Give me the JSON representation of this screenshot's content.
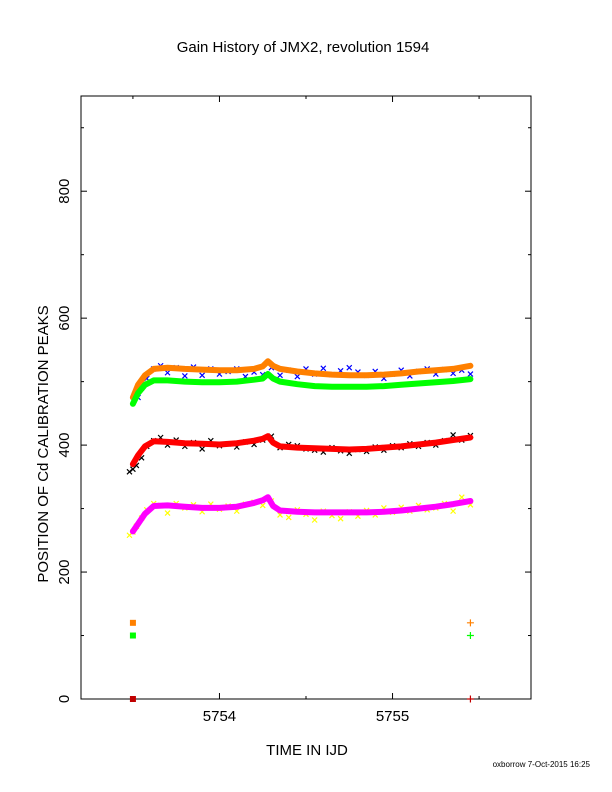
{
  "chart_data": {
    "type": "scatter",
    "title": "Gain History of JMX2, revolution 1594",
    "xlabel": "TIME IN IJD",
    "ylabel": "POSITION OF Cd CALIBRATION PEAKS",
    "xlim": [
      5753.2,
      5755.8
    ],
    "ylim": [
      0,
      950
    ],
    "x_ticks": [
      5754,
      5755
    ],
    "y_ticks": [
      0,
      200,
      400,
      600,
      800
    ],
    "grid": false,
    "series": [
      {
        "color": "#0000ff",
        "marker": "x",
        "points": [
          [
            5753.53,
            475
          ],
          [
            5753.55,
            490
          ],
          [
            5753.58,
            505
          ],
          [
            5753.62,
            520
          ],
          [
            5753.66,
            525
          ],
          [
            5753.7,
            514
          ],
          [
            5753.75,
            522
          ],
          [
            5753.8,
            509
          ],
          [
            5753.85,
            523
          ],
          [
            5753.9,
            510
          ],
          [
            5753.95,
            520
          ],
          [
            5754.0,
            512
          ],
          [
            5754.05,
            516
          ],
          [
            5754.1,
            520
          ],
          [
            5754.15,
            508
          ],
          [
            5754.2,
            515
          ],
          [
            5754.25,
            511
          ],
          [
            5754.3,
            522
          ],
          [
            5754.35,
            510
          ],
          [
            5754.4,
            518
          ],
          [
            5754.45,
            508
          ],
          [
            5754.5,
            520
          ],
          [
            5754.55,
            512
          ],
          [
            5754.6,
            521
          ],
          [
            5754.65,
            511
          ],
          [
            5754.7,
            517
          ],
          [
            5754.75,
            522
          ],
          [
            5754.8,
            515
          ],
          [
            5754.85,
            510
          ],
          [
            5754.9,
            516
          ],
          [
            5754.95,
            505
          ],
          [
            5755.0,
            512
          ],
          [
            5755.05,
            518
          ],
          [
            5755.1,
            509
          ],
          [
            5755.15,
            516
          ],
          [
            5755.2,
            520
          ],
          [
            5755.25,
            512
          ],
          [
            5755.3,
            519
          ],
          [
            5755.35,
            513
          ],
          [
            5755.4,
            518
          ],
          [
            5755.45,
            512
          ]
        ]
      },
      {
        "color": "#000000",
        "marker": "x",
        "points": [
          [
            5753.48,
            358
          ],
          [
            5753.5,
            362
          ],
          [
            5753.52,
            368
          ],
          [
            5753.55,
            380
          ],
          [
            5753.58,
            398
          ],
          [
            5753.62,
            407
          ],
          [
            5753.66,
            412
          ],
          [
            5753.7,
            400
          ],
          [
            5753.75,
            408
          ],
          [
            5753.8,
            398
          ],
          [
            5753.85,
            404
          ],
          [
            5753.9,
            394
          ],
          [
            5753.95,
            407
          ],
          [
            5754.0,
            399
          ],
          [
            5754.05,
            402
          ],
          [
            5754.1,
            397
          ],
          [
            5754.15,
            405
          ],
          [
            5754.2,
            401
          ],
          [
            5754.25,
            408
          ],
          [
            5754.3,
            414
          ],
          [
            5754.35,
            396
          ],
          [
            5754.4,
            401
          ],
          [
            5754.45,
            399
          ],
          [
            5754.5,
            394
          ],
          [
            5754.55,
            392
          ],
          [
            5754.6,
            389
          ],
          [
            5754.65,
            396
          ],
          [
            5754.7,
            391
          ],
          [
            5754.75,
            387
          ],
          [
            5754.8,
            393
          ],
          [
            5754.85,
            390
          ],
          [
            5754.9,
            397
          ],
          [
            5754.95,
            392
          ],
          [
            5755.0,
            399
          ],
          [
            5755.05,
            396
          ],
          [
            5755.1,
            402
          ],
          [
            5755.15,
            398
          ],
          [
            5755.2,
            404
          ],
          [
            5755.25,
            400
          ],
          [
            5755.3,
            407
          ],
          [
            5755.35,
            416
          ],
          [
            5755.4,
            408
          ],
          [
            5755.45,
            415
          ]
        ]
      },
      {
        "color": "#ffff00",
        "marker": "x",
        "points": [
          [
            5753.48,
            258
          ],
          [
            5753.5,
            263
          ],
          [
            5753.52,
            272
          ],
          [
            5753.55,
            285
          ],
          [
            5753.58,
            298
          ],
          [
            5753.62,
            308
          ],
          [
            5753.66,
            305
          ],
          [
            5753.7,
            293
          ],
          [
            5753.75,
            308
          ],
          [
            5753.8,
            301
          ],
          [
            5753.85,
            306
          ],
          [
            5753.9,
            295
          ],
          [
            5753.95,
            307
          ],
          [
            5754.0,
            299
          ],
          [
            5754.05,
            304
          ],
          [
            5754.1,
            296
          ],
          [
            5754.15,
            307
          ],
          [
            5754.2,
            310
          ],
          [
            5754.25,
            305
          ],
          [
            5754.3,
            312
          ],
          [
            5754.35,
            290
          ],
          [
            5754.4,
            286
          ],
          [
            5754.45,
            298
          ],
          [
            5754.5,
            291
          ],
          [
            5754.55,
            282
          ],
          [
            5754.6,
            296
          ],
          [
            5754.65,
            289
          ],
          [
            5754.7,
            284
          ],
          [
            5754.75,
            295
          ],
          [
            5754.8,
            288
          ],
          [
            5754.85,
            297
          ],
          [
            5754.9,
            290
          ],
          [
            5754.95,
            301
          ],
          [
            5755.0,
            294
          ],
          [
            5755.05,
            302
          ],
          [
            5755.1,
            296
          ],
          [
            5755.15,
            305
          ],
          [
            5755.2,
            298
          ],
          [
            5755.25,
            301
          ],
          [
            5755.3,
            308
          ],
          [
            5755.35,
            296
          ],
          [
            5755.4,
            318
          ],
          [
            5755.45,
            306
          ]
        ]
      },
      {
        "color": "#ff8000",
        "marker": "line",
        "points": [
          [
            5753.5,
            475
          ],
          [
            5753.53,
            495
          ],
          [
            5753.57,
            510
          ],
          [
            5753.62,
            520
          ],
          [
            5753.7,
            522
          ],
          [
            5753.8,
            520
          ],
          [
            5753.9,
            519
          ],
          [
            5754.0,
            518
          ],
          [
            5754.1,
            518
          ],
          [
            5754.2,
            520
          ],
          [
            5754.25,
            524
          ],
          [
            5754.28,
            532
          ],
          [
            5754.31,
            525
          ],
          [
            5754.35,
            520
          ],
          [
            5754.45,
            516
          ],
          [
            5754.55,
            513
          ],
          [
            5754.65,
            511
          ],
          [
            5754.75,
            510
          ],
          [
            5754.85,
            510
          ],
          [
            5754.95,
            511
          ],
          [
            5755.05,
            513
          ],
          [
            5755.15,
            516
          ],
          [
            5755.25,
            518
          ],
          [
            5755.35,
            520
          ],
          [
            5755.45,
            525
          ]
        ]
      },
      {
        "color": "#00ff00",
        "marker": "line",
        "points": [
          [
            5753.5,
            465
          ],
          [
            5753.53,
            482
          ],
          [
            5753.57,
            495
          ],
          [
            5753.62,
            502
          ],
          [
            5753.7,
            502
          ],
          [
            5753.8,
            500
          ],
          [
            5753.9,
            499
          ],
          [
            5754.0,
            499
          ],
          [
            5754.1,
            500
          ],
          [
            5754.2,
            503
          ],
          [
            5754.25,
            505
          ],
          [
            5754.28,
            512
          ],
          [
            5754.31,
            505
          ],
          [
            5754.35,
            500
          ],
          [
            5754.45,
            496
          ],
          [
            5754.55,
            493
          ],
          [
            5754.65,
            492
          ],
          [
            5754.75,
            492
          ],
          [
            5754.85,
            492
          ],
          [
            5754.95,
            493
          ],
          [
            5755.05,
            495
          ],
          [
            5755.15,
            497
          ],
          [
            5755.25,
            499
          ],
          [
            5755.35,
            501
          ],
          [
            5755.45,
            504
          ]
        ]
      },
      {
        "color": "#ff0000",
        "marker": "line",
        "points": [
          [
            5753.5,
            370
          ],
          [
            5753.53,
            384
          ],
          [
            5753.57,
            398
          ],
          [
            5753.62,
            406
          ],
          [
            5753.7,
            405
          ],
          [
            5753.8,
            403
          ],
          [
            5753.9,
            402
          ],
          [
            5754.0,
            401
          ],
          [
            5754.1,
            403
          ],
          [
            5754.2,
            407
          ],
          [
            5754.25,
            410
          ],
          [
            5754.28,
            414
          ],
          [
            5754.31,
            404
          ],
          [
            5754.35,
            398
          ],
          [
            5754.45,
            396
          ],
          [
            5754.55,
            395
          ],
          [
            5754.65,
            394
          ],
          [
            5754.75,
            393
          ],
          [
            5754.85,
            394
          ],
          [
            5754.95,
            396
          ],
          [
            5755.05,
            398
          ],
          [
            5755.15,
            401
          ],
          [
            5755.25,
            404
          ],
          [
            5755.35,
            408
          ],
          [
            5755.45,
            412
          ]
        ]
      },
      {
        "color": "#ff00ff",
        "marker": "line",
        "points": [
          [
            5753.5,
            264
          ],
          [
            5753.53,
            276
          ],
          [
            5753.57,
            292
          ],
          [
            5753.62,
            304
          ],
          [
            5753.7,
            305
          ],
          [
            5753.8,
            303
          ],
          [
            5753.9,
            301
          ],
          [
            5754.0,
            301
          ],
          [
            5754.1,
            303
          ],
          [
            5754.2,
            309
          ],
          [
            5754.25,
            313
          ],
          [
            5754.28,
            318
          ],
          [
            5754.31,
            304
          ],
          [
            5754.35,
            297
          ],
          [
            5754.45,
            295
          ],
          [
            5754.55,
            294
          ],
          [
            5754.65,
            294
          ],
          [
            5754.75,
            294
          ],
          [
            5754.85,
            294
          ],
          [
            5754.95,
            295
          ],
          [
            5755.05,
            297
          ],
          [
            5755.15,
            300
          ],
          [
            5755.25,
            303
          ],
          [
            5755.35,
            307
          ],
          [
            5755.45,
            312
          ]
        ]
      },
      {
        "color": "#ff8000",
        "marker": "square",
        "points": [
          [
            5753.5,
            120
          ]
        ]
      },
      {
        "color": "#00ff00",
        "marker": "square",
        "points": [
          [
            5753.5,
            100
          ]
        ]
      },
      {
        "color": "#c00000",
        "marker": "square",
        "points": [
          [
            5753.5,
            0
          ]
        ]
      },
      {
        "color": "#ff8000",
        "marker": "plus",
        "points": [
          [
            5755.45,
            120
          ]
        ]
      },
      {
        "color": "#00ff00",
        "marker": "plus",
        "points": [
          [
            5755.45,
            100
          ]
        ]
      },
      {
        "color": "#c00000",
        "marker": "plus",
        "points": [
          [
            5755.45,
            0
          ]
        ]
      }
    ]
  },
  "footer": "oxborrow  7-Oct-2015 16:25"
}
